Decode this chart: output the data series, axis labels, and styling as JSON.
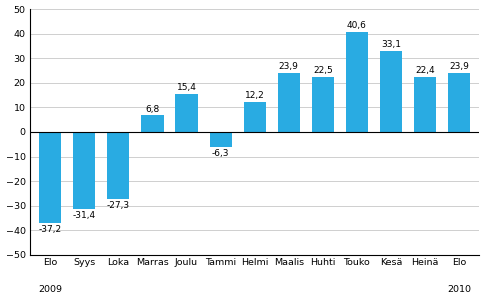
{
  "categories": [
    "Elo",
    "Syys",
    "Loka",
    "Marras",
    "Joulu",
    "Tammi",
    "Helmi",
    "Maalis",
    "Huhti",
    "Touko",
    "Kesä",
    "Heinä",
    "Elo"
  ],
  "values": [
    -37.2,
    -31.4,
    -27.3,
    6.8,
    15.4,
    -6.3,
    12.2,
    23.9,
    22.5,
    40.6,
    33.1,
    22.4,
    23.9
  ],
  "bar_color": "#29ABE2",
  "ylim": [
    -50,
    50
  ],
  "yticks": [
    -50,
    -40,
    -30,
    -20,
    -10,
    0,
    10,
    20,
    30,
    40,
    50
  ],
  "label_fontsize": 6.5,
  "tick_fontsize": 6.8,
  "year_fontsize": 6.8,
  "background_color": "#ffffff",
  "grid_color": "#c8c8c8",
  "year_2009_idx": 0,
  "year_2010_idx": 12
}
